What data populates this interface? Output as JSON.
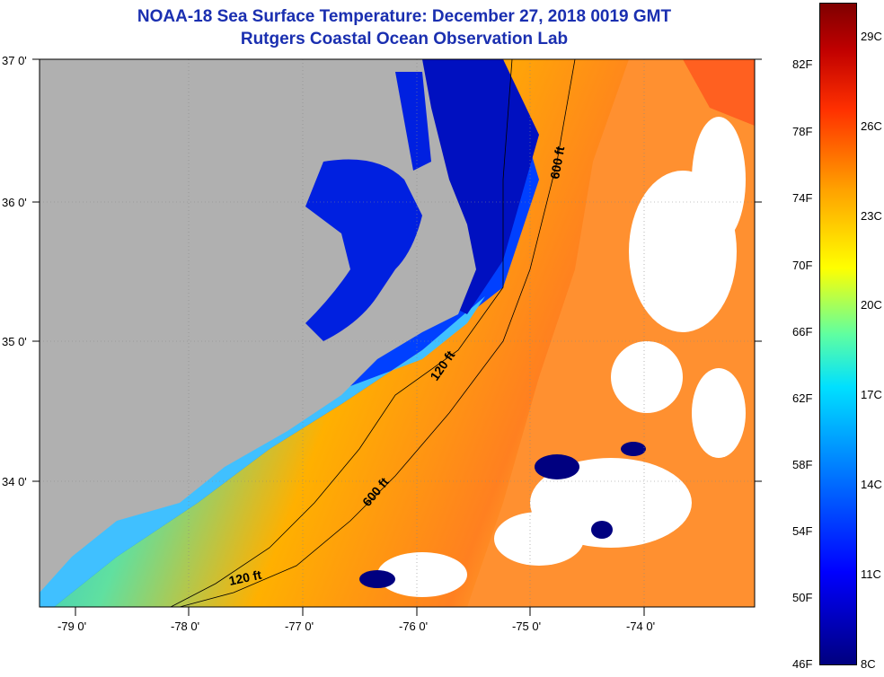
{
  "title": {
    "line1": "NOAA-18 Sea Surface Temperature:  December 27, 2018 0019 GMT",
    "line2": "Rutgers Coastal Ocean Observation Lab"
  },
  "map": {
    "lat_labels": [
      "37 0'",
      "36 0'",
      "35 0'",
      "34 0'"
    ],
    "lon_labels": [
      "-79 0'",
      "-78 0'",
      "-77 0'",
      "-76 0'",
      "-75 0'",
      "-74 0'"
    ],
    "contours": [
      {
        "label": "600 ft",
        "depth_ft": 600
      },
      {
        "label": "120 ft",
        "depth_ft": 120
      },
      {
        "label": "600 ft",
        "depth_ft": 600
      },
      {
        "label": "120 ft",
        "depth_ft": 120
      }
    ]
  },
  "colorbar": {
    "fahrenheit": [
      "82F",
      "78F",
      "74F",
      "70F",
      "66F",
      "62F",
      "58F",
      "54F",
      "50F",
      "46F"
    ],
    "celsius": [
      "29C",
      "26C",
      "23C",
      "20C",
      "17C",
      "14C",
      "11C",
      "8C"
    ],
    "colors": [
      "#00007f",
      "#0000ff",
      "#0080ff",
      "#00e0ff",
      "#60ffa0",
      "#ffff00",
      "#ffa000",
      "#ff3000",
      "#c00000",
      "#7f0000"
    ]
  }
}
